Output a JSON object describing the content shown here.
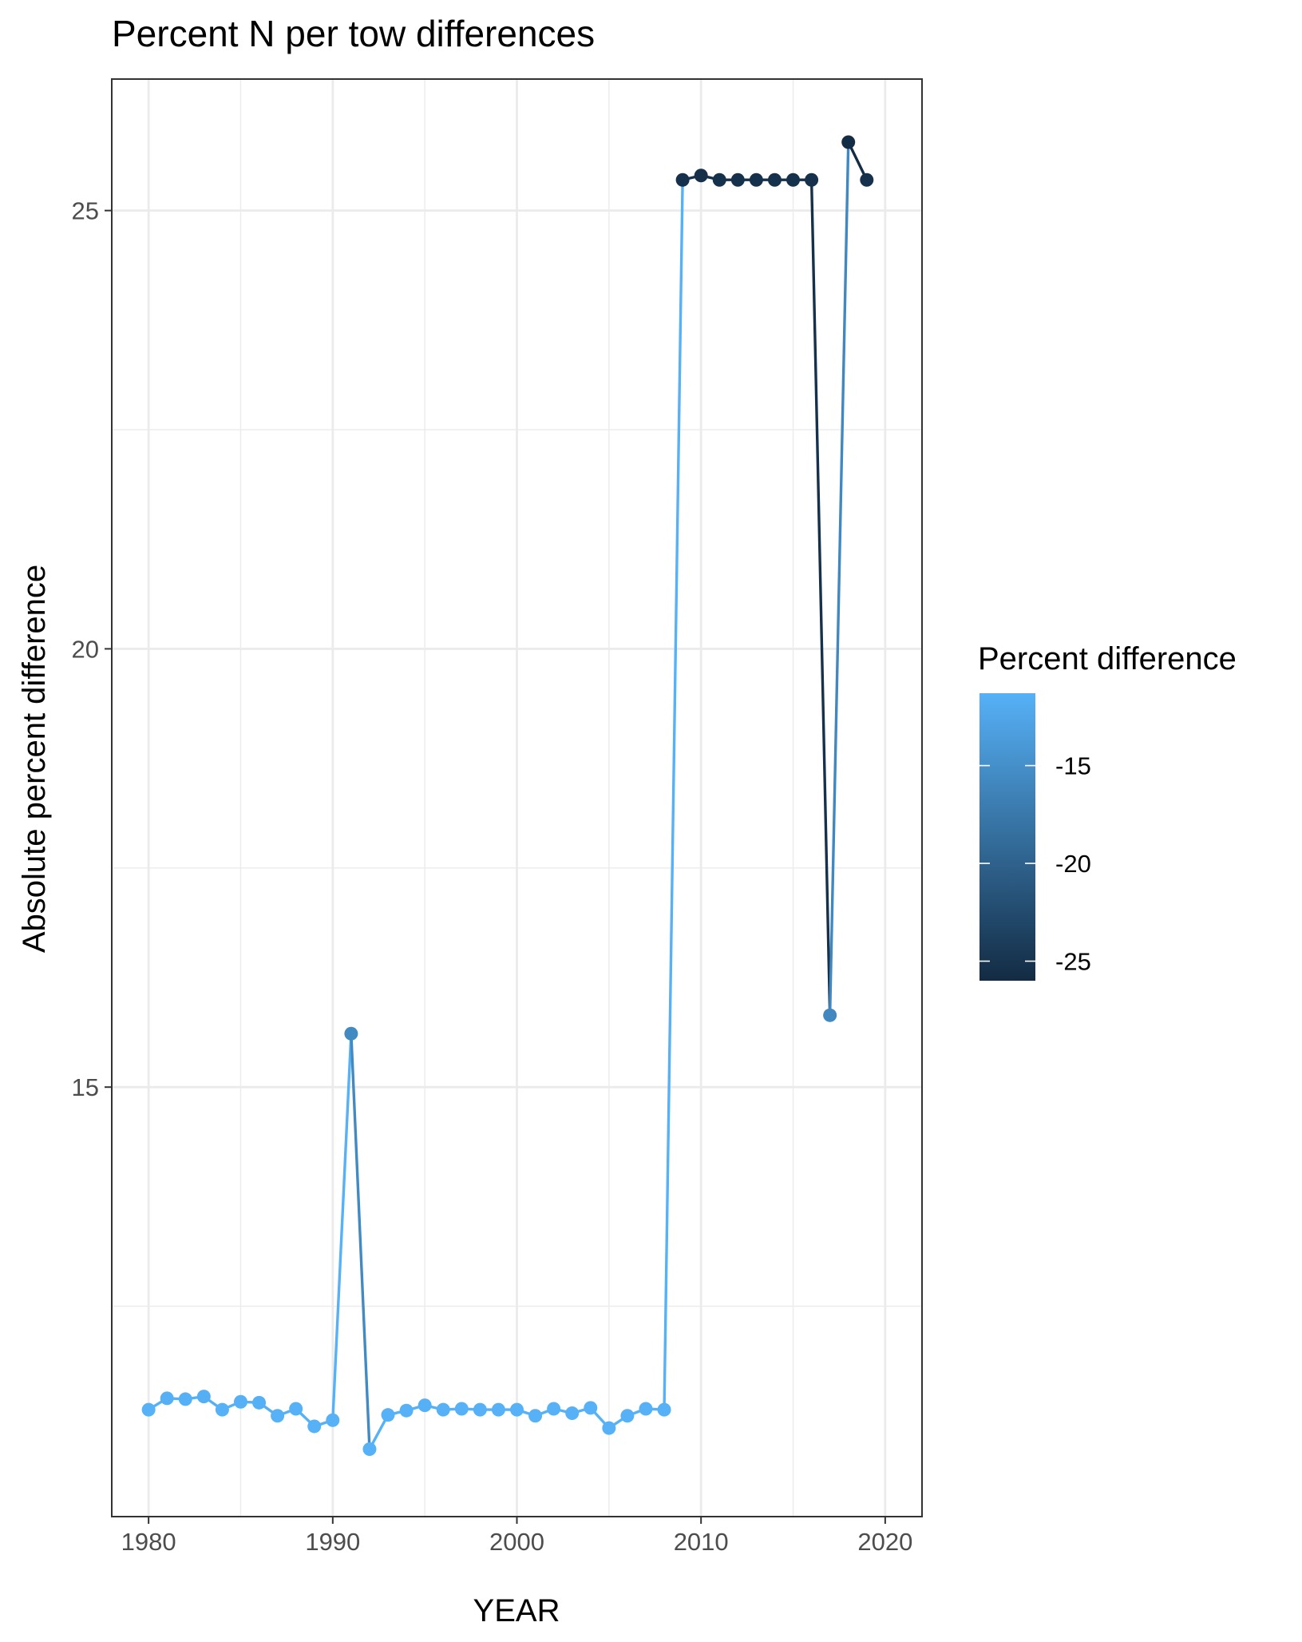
{
  "chart_data": {
    "type": "line",
    "title": "Percent N per tow differences",
    "xlabel": "YEAR",
    "ylabel": "Absolute percent difference",
    "xlim": [
      1978,
      2022
    ],
    "ylim": [
      10.1,
      26.5
    ],
    "x_ticks": [
      1980,
      1990,
      2000,
      2010,
      2020
    ],
    "x_tick_labels": [
      "1980",
      "1990",
      "2000",
      "2010",
      "2020"
    ],
    "y_ticks": [
      15,
      20,
      25
    ],
    "y_tick_labels": [
      "15",
      "20",
      "25"
    ],
    "grid": true,
    "legend": {
      "title": "Percent difference",
      "placement": "right",
      "type": "colorbar",
      "low_color": "#132B43",
      "high_color": "#56B1F7",
      "range": [
        -26.0,
        -11.3
      ],
      "ticks": [
        -15,
        -20,
        -25
      ],
      "tick_labels": [
        "-15",
        "-20",
        "-25"
      ]
    },
    "x": [
      1980,
      1981,
      1982,
      1983,
      1984,
      1985,
      1986,
      1987,
      1988,
      1989,
      1990,
      1991,
      1992,
      1993,
      1994,
      1995,
      1996,
      1997,
      1998,
      1999,
      2000,
      2001,
      2002,
      2003,
      2004,
      2005,
      2006,
      2007,
      2008,
      2009,
      2010,
      2011,
      2012,
      2013,
      2014,
      2015,
      2016,
      2017,
      2018,
      2019
    ],
    "y": [
      11.32,
      11.45,
      11.44,
      11.47,
      11.32,
      11.41,
      11.4,
      11.25,
      11.33,
      11.13,
      11.2,
      15.61,
      10.87,
      11.26,
      11.31,
      11.37,
      11.32,
      11.33,
      11.32,
      11.32,
      11.32,
      11.25,
      11.33,
      11.28,
      11.34,
      11.11,
      11.25,
      11.33,
      11.32,
      25.35,
      25.4,
      25.35,
      25.35,
      25.35,
      25.35,
      25.35,
      25.35,
      15.82,
      25.78,
      25.35
    ],
    "color_values": [
      -11.32,
      -11.45,
      -11.44,
      -11.47,
      -11.32,
      -11.41,
      -11.4,
      -11.25,
      -11.33,
      -11.13,
      -11.2,
      -15.61,
      -10.87,
      -11.26,
      -11.31,
      -11.37,
      -11.32,
      -11.33,
      -11.32,
      -11.32,
      -11.32,
      -11.25,
      -11.33,
      -11.28,
      -11.34,
      -11.11,
      -11.25,
      -11.33,
      -11.32,
      -25.35,
      -25.4,
      -25.35,
      -25.35,
      -25.35,
      -25.35,
      -25.35,
      -25.35,
      -15.82,
      -25.78,
      -25.35
    ]
  }
}
